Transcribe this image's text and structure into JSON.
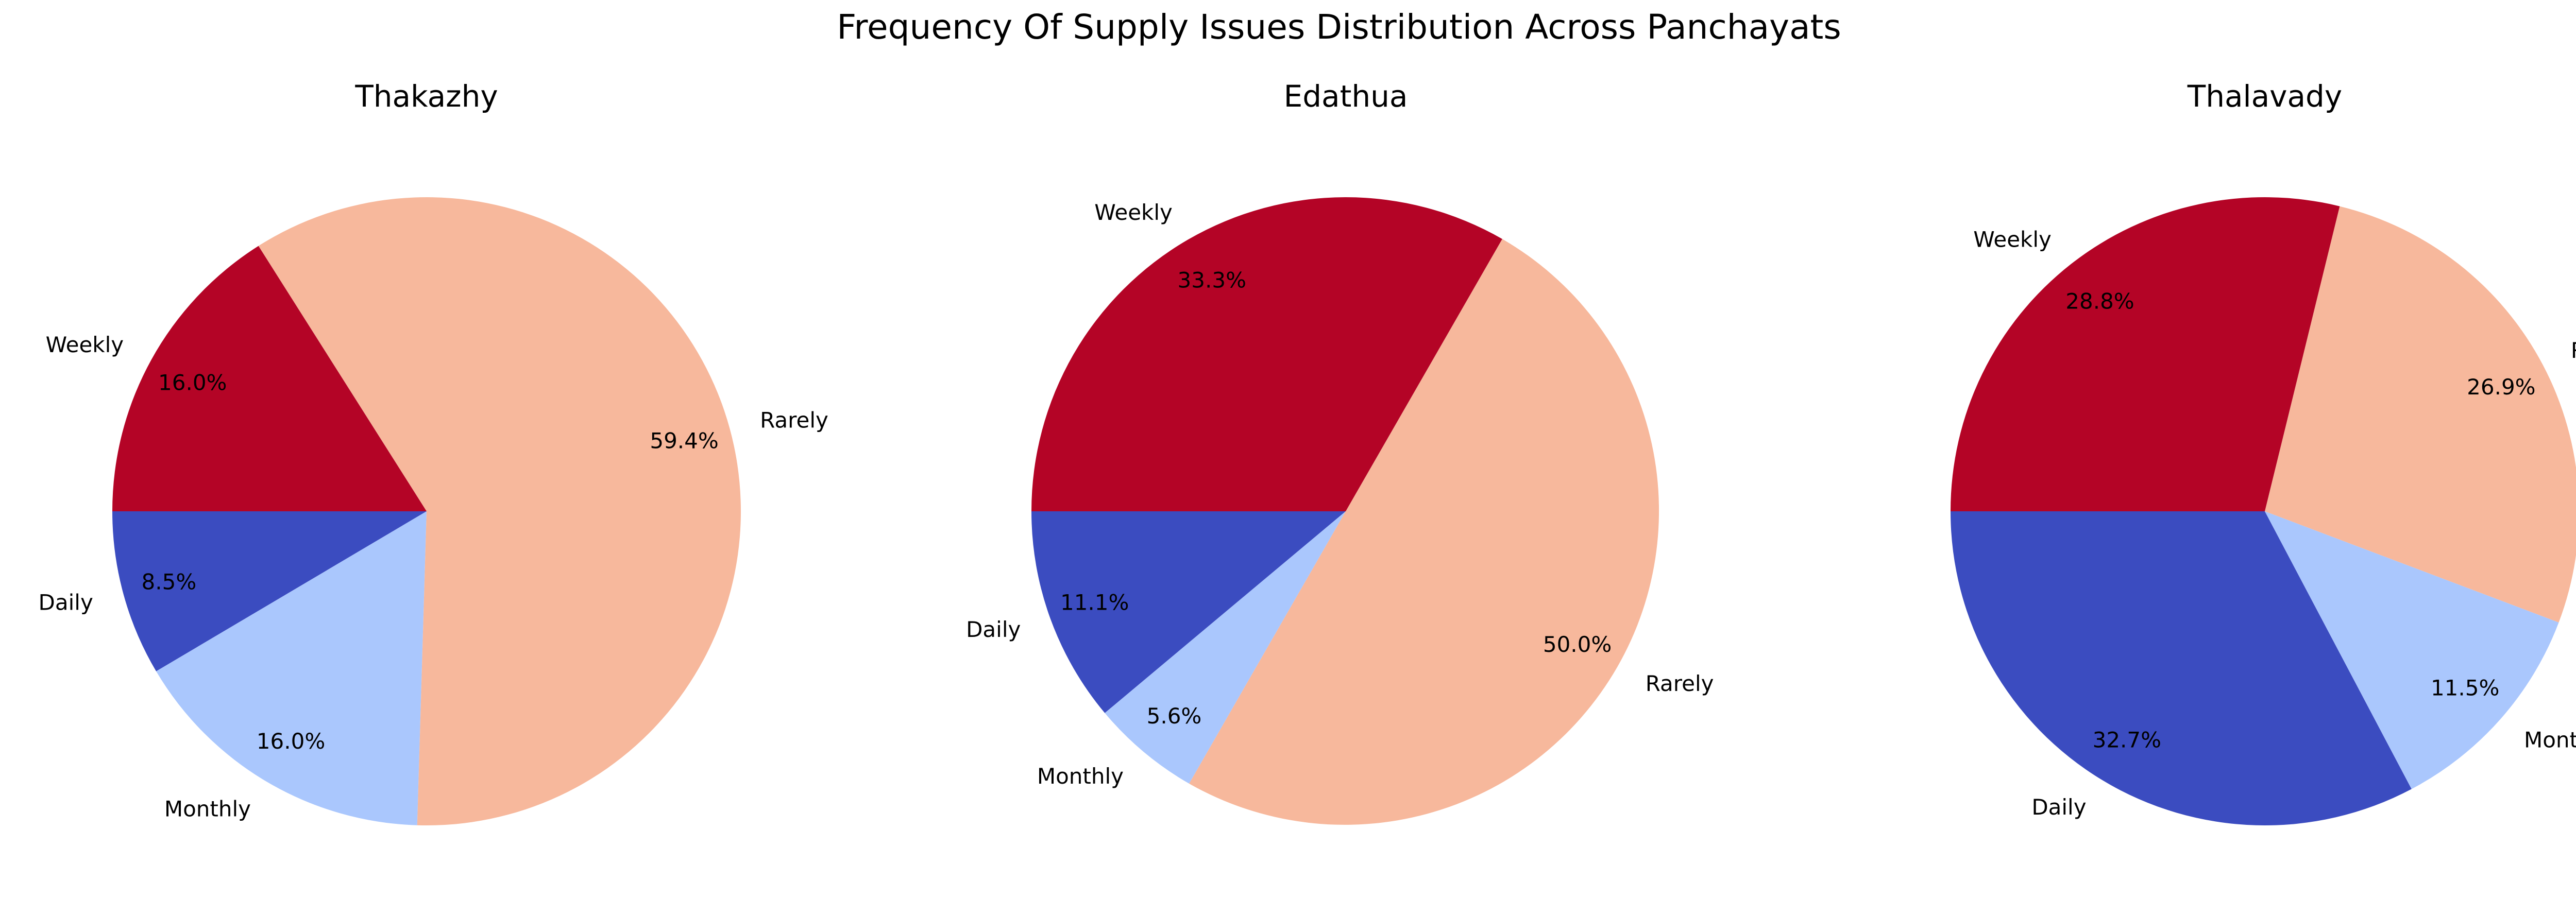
{
  "chart_data": {
    "title": "Frequency Of Supply Issues Distribution Across Panchayats",
    "type": "pie",
    "colors": {
      "Daily": "#3b4cc0",
      "Monthly": "#aac7fd",
      "Rarely": "#f7b89c",
      "Weekly": "#b40426"
    },
    "charts": [
      {
        "type": "pie",
        "title": "Thakazhy",
        "slices": [
          {
            "label": "Daily",
            "value": 8.5,
            "pct_label": "8.5%"
          },
          {
            "label": "Monthly",
            "value": 16.0,
            "pct_label": "16.0%"
          },
          {
            "label": "Rarely",
            "value": 59.4,
            "pct_label": "59.4%"
          },
          {
            "label": "Weekly",
            "value": 16.0,
            "pct_label": "16.0%"
          }
        ]
      },
      {
        "type": "pie",
        "title": "Edathua",
        "slices": [
          {
            "label": "Daily",
            "value": 11.1,
            "pct_label": "11.1%"
          },
          {
            "label": "Monthly",
            "value": 5.6,
            "pct_label": "5.6%"
          },
          {
            "label": "Rarely",
            "value": 50.0,
            "pct_label": "50.0%"
          },
          {
            "label": "Weekly",
            "value": 33.3,
            "pct_label": "33.3%"
          }
        ]
      },
      {
        "type": "pie",
        "title": "Thalavady",
        "slices": [
          {
            "label": "Daily",
            "value": 32.7,
            "pct_label": "32.7%"
          },
          {
            "label": "Monthly",
            "value": 11.5,
            "pct_label": "11.5%"
          },
          {
            "label": "Rarely",
            "value": 26.9,
            "pct_label": "26.9%"
          },
          {
            "label": "Weekly",
            "value": 28.8,
            "pct_label": "28.8%"
          }
        ]
      }
    ]
  }
}
